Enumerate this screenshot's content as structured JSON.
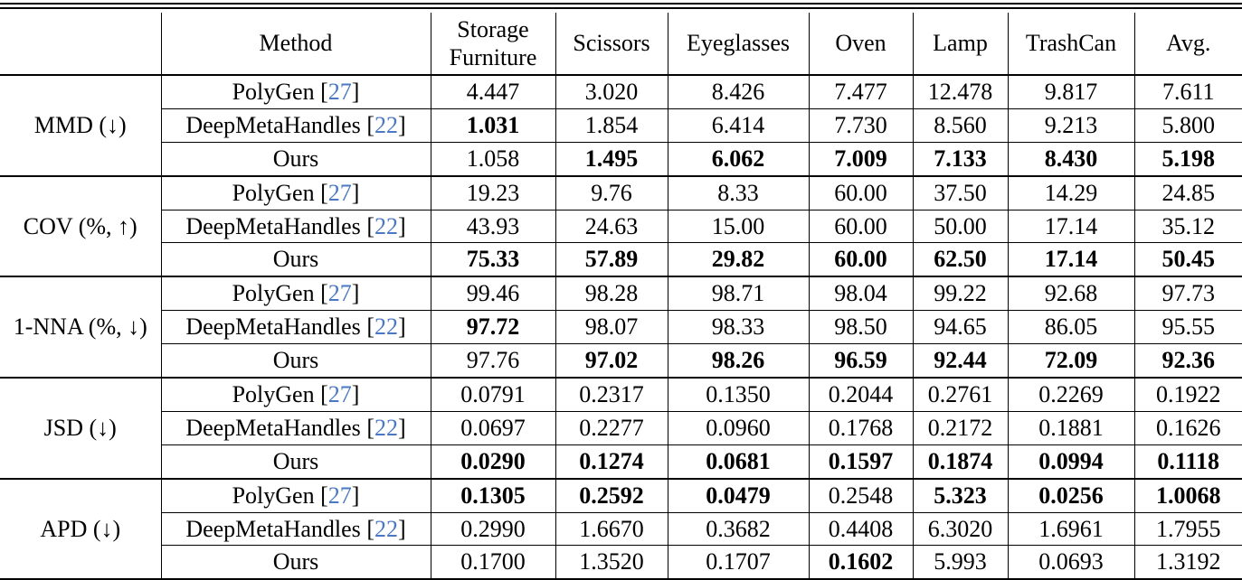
{
  "columns": {
    "method": "Method",
    "storage_line1": "Storage",
    "storage_line2": "Furniture",
    "scissors": "Scissors",
    "eyeglasses": "Eyeglasses",
    "oven": "Oven",
    "lamp": "Lamp",
    "trashcan": "TrashCan",
    "avg": "Avg."
  },
  "methods": {
    "polygen": "PolyGen",
    "polygen_ref": "27",
    "deepmeta": "DeepMetaHandles",
    "deepmeta_ref": "22",
    "ours": "Ours"
  },
  "groups": [
    {
      "metric": "MMD (↓)",
      "rows": [
        {
          "values": [
            "4.447",
            "3.020",
            "8.426",
            "7.477",
            "12.478",
            "9.817",
            "7.611"
          ],
          "bold": [
            false,
            false,
            false,
            false,
            false,
            false,
            false
          ]
        },
        {
          "values": [
            "1.031",
            "1.854",
            "6.414",
            "7.730",
            "8.560",
            "9.213",
            "5.800"
          ],
          "bold": [
            true,
            false,
            false,
            false,
            false,
            false,
            false
          ]
        },
        {
          "values": [
            "1.058",
            "1.495",
            "6.062",
            "7.009",
            "7.133",
            "8.430",
            "5.198"
          ],
          "bold": [
            false,
            true,
            true,
            true,
            true,
            true,
            true
          ]
        }
      ]
    },
    {
      "metric": "COV (%, ↑)",
      "rows": [
        {
          "values": [
            "19.23",
            "9.76",
            "8.33",
            "60.00",
            "37.50",
            "14.29",
            "24.85"
          ],
          "bold": [
            false,
            false,
            false,
            false,
            false,
            false,
            false
          ]
        },
        {
          "values": [
            "43.93",
            "24.63",
            "15.00",
            "60.00",
            "50.00",
            "17.14",
            "35.12"
          ],
          "bold": [
            false,
            false,
            false,
            false,
            false,
            false,
            false
          ]
        },
        {
          "values": [
            "75.33",
            "57.89",
            "29.82",
            "60.00",
            "62.50",
            "17.14",
            "50.45"
          ],
          "bold": [
            true,
            true,
            true,
            true,
            true,
            true,
            true
          ]
        }
      ]
    },
    {
      "metric": "1-NNA (%, ↓)",
      "rows": [
        {
          "values": [
            "99.46",
            "98.28",
            "98.71",
            "98.04",
            "99.22",
            "92.68",
            "97.73"
          ],
          "bold": [
            false,
            false,
            false,
            false,
            false,
            false,
            false
          ]
        },
        {
          "values": [
            "97.72",
            "98.07",
            "98.33",
            "98.50",
            "94.65",
            "86.05",
            "95.55"
          ],
          "bold": [
            true,
            false,
            false,
            false,
            false,
            false,
            false
          ]
        },
        {
          "values": [
            "97.76",
            "97.02",
            "98.26",
            "96.59",
            "92.44",
            "72.09",
            "92.36"
          ],
          "bold": [
            false,
            true,
            true,
            true,
            true,
            true,
            true
          ]
        }
      ]
    },
    {
      "metric": "JSD (↓)",
      "rows": [
        {
          "values": [
            "0.0791",
            "0.2317",
            "0.1350",
            "0.2044",
            "0.2761",
            "0.2269",
            "0.1922"
          ],
          "bold": [
            false,
            false,
            false,
            false,
            false,
            false,
            false
          ]
        },
        {
          "values": [
            "0.0697",
            "0.2277",
            "0.0960",
            "0.1768",
            "0.2172",
            "0.1881",
            "0.1626"
          ],
          "bold": [
            false,
            false,
            false,
            false,
            false,
            false,
            false
          ]
        },
        {
          "values": [
            "0.0290",
            "0.1274",
            "0.0681",
            "0.1597",
            "0.1874",
            "0.0994",
            "0.1118"
          ],
          "bold": [
            true,
            true,
            true,
            true,
            true,
            true,
            true
          ]
        }
      ]
    },
    {
      "metric": "APD (↓)",
      "rows": [
        {
          "values": [
            "0.1305",
            "0.2592",
            "0.0479",
            "0.2548",
            "5.323",
            "0.0256",
            "1.0068"
          ],
          "bold": [
            true,
            true,
            true,
            false,
            true,
            true,
            true
          ]
        },
        {
          "values": [
            "0.2990",
            "1.6670",
            "0.3682",
            "0.4408",
            "6.3020",
            "1.6961",
            "1.7955"
          ],
          "bold": [
            false,
            false,
            false,
            false,
            false,
            false,
            false
          ]
        },
        {
          "values": [
            "0.1700",
            "1.3520",
            "0.1707",
            "0.1602",
            "5.993",
            "0.0693",
            "1.3192"
          ],
          "bold": [
            false,
            false,
            false,
            true,
            false,
            false,
            false
          ]
        }
      ]
    }
  ]
}
